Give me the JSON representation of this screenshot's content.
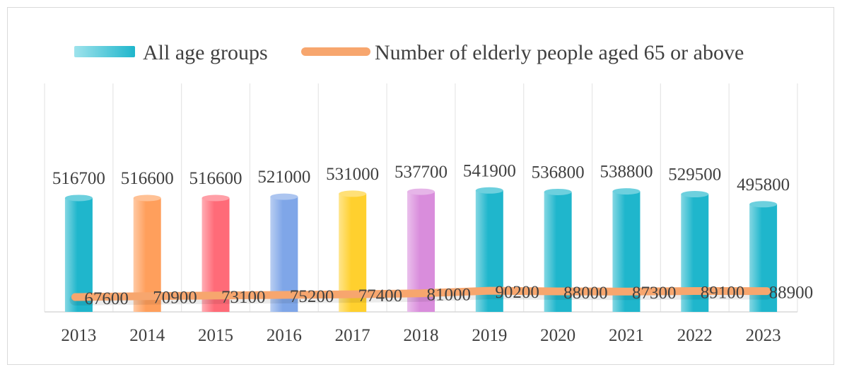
{
  "chart_data": {
    "type": "bar",
    "categories": [
      "2013",
      "2014",
      "2015",
      "2016",
      "2017",
      "2018",
      "2019",
      "2020",
      "2021",
      "2022",
      "2023"
    ],
    "series": [
      {
        "name": "All age groups",
        "type": "bar",
        "values": [
          516700,
          516600,
          516600,
          521000,
          531000,
          537700,
          541900,
          536800,
          538800,
          529500,
          495800
        ]
      },
      {
        "name": "Number of elderly people aged 65 or above",
        "type": "line",
        "values": [
          67600,
          70900,
          73100,
          75200,
          77400,
          81000,
          90200,
          88000,
          87300,
          89100,
          88900
        ]
      }
    ],
    "legend_position": "top",
    "grid": "vertical",
    "colors": {
      "bars": [
        "#1fb6cc",
        "#ff9f5c",
        "#ff6b78",
        "#7fa6e8",
        "#ffd02e",
        "#d98ddc",
        "#1fb6cc",
        "#1fb6cc",
        "#1fb6cc",
        "#1fb6cc",
        "#1fb6cc"
      ],
      "line": "#f7a66e",
      "legend_bar": "#1fb6cc"
    }
  }
}
